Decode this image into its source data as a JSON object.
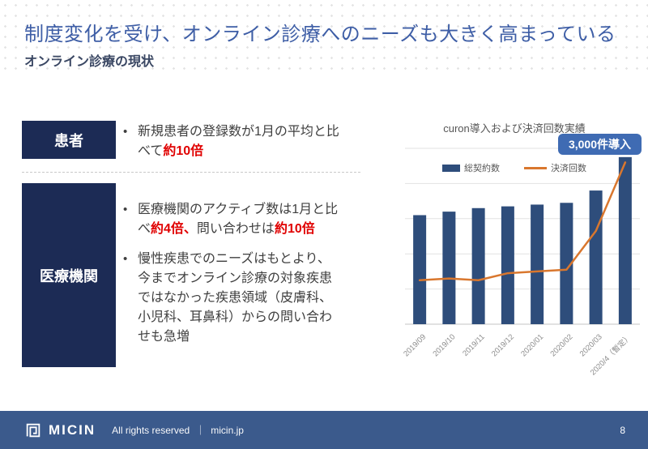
{
  "header": {
    "title": "制度変化を受け、オンライン診療へのニーズも大きく高まっている",
    "subtitle": "オンライン診療の現状"
  },
  "left_panel": {
    "rows": [
      {
        "label": "患者",
        "bullets": [
          [
            {
              "t": "新規患者の登録数が1月の平均と比べて"
            },
            {
              "t": "約10倍",
              "red": true
            }
          ]
        ]
      },
      {
        "label": "医療機関",
        "bullets": [
          [
            {
              "t": "医療機関のアクティブ数は1月と比べ"
            },
            {
              "t": "約4倍、",
              "red": true
            },
            {
              "t": "問い合わせは"
            },
            {
              "t": "約10倍",
              "red": true
            }
          ],
          [
            {
              "t": "慢性疾患でのニーズはもとより、今までオンライン診療の対象疾患ではなかった疾患領域（皮膚科、小児科、耳鼻科）からの問い合わせも急増"
            }
          ]
        ]
      }
    ]
  },
  "chart_data": {
    "type": "combo",
    "title": "curon導入および決済回数実績",
    "annotation": "3,000件導入",
    "categories": [
      "2019/09",
      "2019/10",
      "2019/11",
      "2019/12",
      "2020/01",
      "2020/02",
      "2020/03",
      "2020/4（暫定）"
    ],
    "series": [
      {
        "name": "総契約数",
        "type": "bar",
        "color": "#2e4d7b",
        "values": [
          62,
          64,
          66,
          67,
          68,
          69,
          76,
          95
        ]
      },
      {
        "name": "決済回数",
        "type": "line",
        "color": "#d9772e",
        "values": [
          25,
          26,
          25,
          29,
          30,
          31,
          53,
          92
        ]
      }
    ],
    "ylim": [
      0,
      100
    ],
    "grid": true,
    "y_axis_labels_visible": false,
    "legend_position": "top-center"
  },
  "footer": {
    "brand": "MICIN",
    "rights": "All rights reserved",
    "divider": "｜",
    "site": "micin.jp",
    "page": "8"
  },
  "colors": {
    "title_blue": "#3e5ea6",
    "accent_navy": "#1c2b55",
    "bar_navy": "#2e4d7b",
    "line_orange": "#d9772e",
    "badge_blue": "#3f6bb3",
    "highlight_red": "#e00000",
    "footer_navy": "#3b5a8c"
  }
}
